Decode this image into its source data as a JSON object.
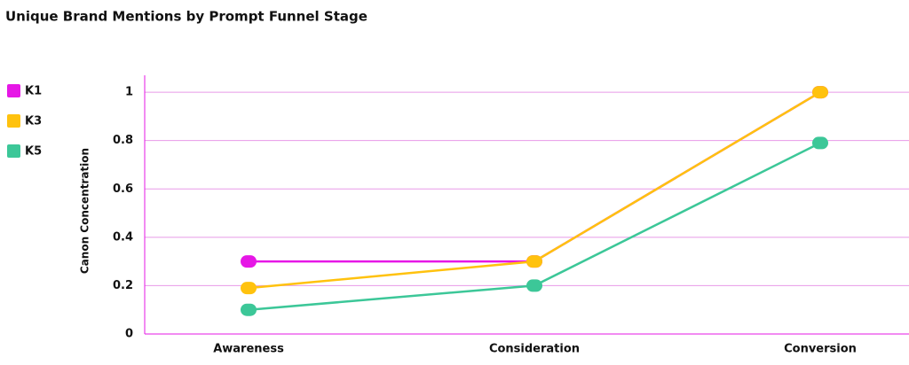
{
  "chart_data": {
    "type": "line",
    "title": "Unique Brand Mentions by Prompt Funnel Stage",
    "y_label": "Canon Concentration",
    "categories": [
      "Awareness",
      "Consideration",
      "Conversion"
    ],
    "series": [
      {
        "name": "K1",
        "color": "#e617e6",
        "values": [
          0.3,
          0.3,
          1
        ]
      },
      {
        "name": "K3",
        "color": "#ffc20e",
        "values": [
          0.19,
          0.3,
          1
        ]
      },
      {
        "name": "K5",
        "color": "#3cc798",
        "values": [
          0.1,
          0.2,
          0.79
        ]
      }
    ],
    "ylim": [
      0,
      1.07
    ],
    "yticks": [
      0,
      0.2,
      0.4,
      0.6,
      0.8,
      1
    ],
    "grid": true,
    "legend": "left"
  }
}
